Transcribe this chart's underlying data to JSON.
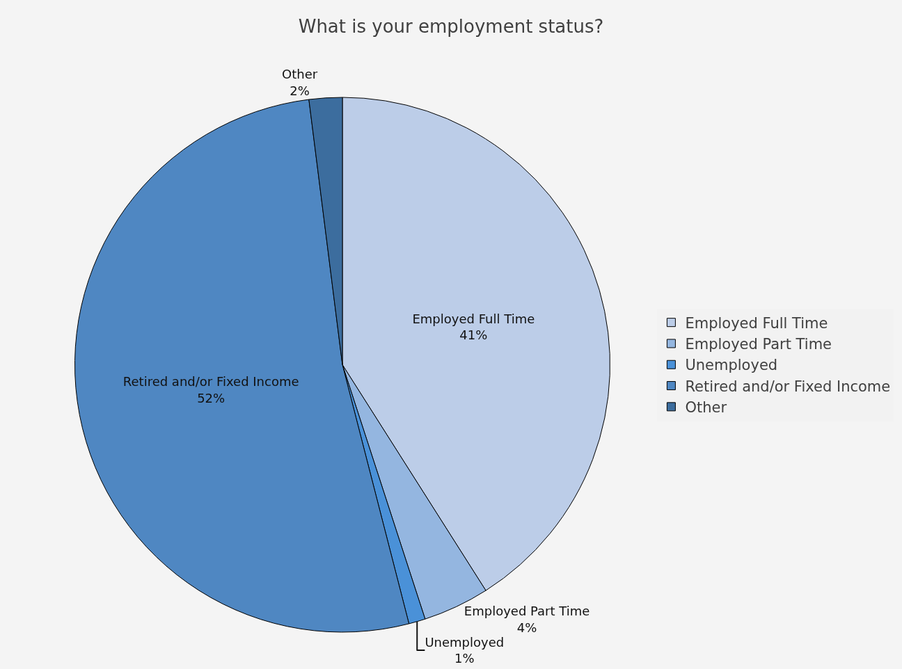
{
  "chart_data": {
    "type": "pie",
    "title": "What is your employment status?",
    "categories": [
      "Employed Full Time",
      "Employed Part Time",
      "Unemployed",
      "Retired and/or Fixed Income",
      "Other"
    ],
    "values": [
      41,
      4,
      1,
      52,
      2
    ],
    "value_labels": [
      "41%",
      "4%",
      "1%",
      "52%",
      "2%"
    ],
    "colors": [
      "#bccde8",
      "#94b6e0",
      "#4a91d8",
      "#4f87c2",
      "#3c6d9e"
    ],
    "legend": "right"
  }
}
